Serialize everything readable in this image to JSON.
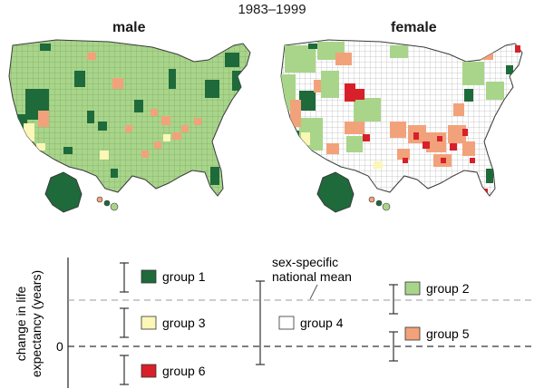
{
  "period": "1983–1999",
  "panels": [
    {
      "title": "male"
    },
    {
      "title": "female"
    }
  ],
  "legend": {
    "y_axis_label_line1": "change in life",
    "y_axis_label_line2": "expectancy (years)",
    "zero_label": "0",
    "mean_label_line1": "sex-specific",
    "mean_label_line2": "national mean",
    "groups": [
      {
        "label": "group 1",
        "color": "#1e6a3a"
      },
      {
        "label": "group 2",
        "color": "#a8d58a"
      },
      {
        "label": "group 3",
        "color": "#fbf7b6"
      },
      {
        "label": "group 4",
        "color": "#ffffff"
      },
      {
        "label": "group 5",
        "color": "#f2a27a"
      },
      {
        "label": "group 6",
        "color": "#d8202a"
      }
    ]
  },
  "colors": {
    "group1": "#1e6a3a",
    "group2": "#a8d58a",
    "group3": "#fbf7b6",
    "group4": "#ffffff",
    "group5": "#f2a27a",
    "group6": "#d8202a",
    "outline": "#3a3a3a"
  }
}
